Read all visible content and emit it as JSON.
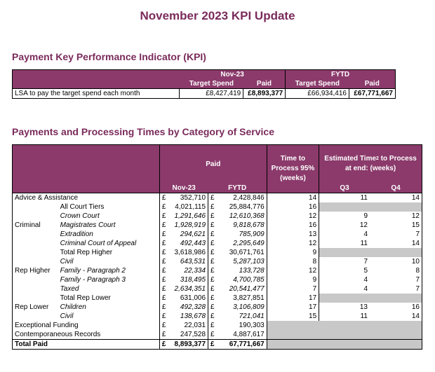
{
  "title": "November 2023 KPI Update",
  "kpi": {
    "section_title": "Payment Key Performance Indicator (KPI)",
    "period_nov": "Nov-23",
    "period_fytd": "FYTD",
    "col_target": "Target Spend",
    "col_paid": "Paid",
    "row_label": "LSA to pay the target spend each month",
    "nov_target": "£8,427,419",
    "nov_paid": "£8,893,377",
    "fytd_target": "£66,934,416",
    "fytd_paid": "£67,771,667"
  },
  "category": {
    "section_title": "Payments and Processing Times by Category of Service",
    "hdr_paid": "Paid",
    "hdr_nov": "Nov-23",
    "hdr_fytd": "FYTD",
    "hdr_time": "Time to Process 95% (weeks)",
    "hdr_est_pre": "Estimated Time",
    "hdr_est_sup": "2",
    "hdr_est_post": " to Process at end: (weeks)",
    "hdr_q3": "Q3",
    "hdr_q4": "Q4",
    "currency": "£",
    "rows": [
      {
        "group": "Advice & Assistance",
        "sub": "",
        "nov": "352,710",
        "fytd": "2,428,846",
        "time": "14",
        "q3": "11",
        "q4": "14"
      },
      {
        "group": "",
        "sub": "All Court Tiers",
        "nov": "4,021,115",
        "fytd": "25,884,776",
        "time": "16",
        "q3": "",
        "q4": ""
      },
      {
        "group": "",
        "sub": "Crown Court",
        "nov": "1,291,646",
        "fytd": "12,610,368",
        "time": "12",
        "q3": "9",
        "q4": "12"
      },
      {
        "group": "Criminal",
        "sub": "Magistrates Court",
        "nov": "1,928,919",
        "fytd": "9,818,678",
        "time": "16",
        "q3": "12",
        "q4": "15"
      },
      {
        "group": "",
        "sub": "Extradition",
        "nov": "294,621",
        "fytd": "785,909",
        "time": "13",
        "q3": "4",
        "q4": "7"
      },
      {
        "group": "",
        "sub": "Criminal Court of Appeal",
        "nov": "492,443",
        "fytd": "2,295,649",
        "time": "12",
        "q3": "11",
        "q4": "14"
      },
      {
        "group": "",
        "sub": "Total Rep Higher",
        "nov": "3,618,986",
        "fytd": "30,671,761",
        "time": "9",
        "q3": "",
        "q4": ""
      },
      {
        "group": "",
        "sub": "Civil",
        "nov": "643,531",
        "fytd": "5,287,103",
        "time": "8",
        "q3": "7",
        "q4": "10"
      },
      {
        "group": "Rep Higher",
        "sub": "Family - Paragraph 2",
        "nov": "22,334",
        "fytd": "133,728",
        "time": "12",
        "q3": "5",
        "q4": "8"
      },
      {
        "group": "",
        "sub": "Family - Paragraph 3",
        "nov": "318,495",
        "fytd": "4,700,785",
        "time": "9",
        "q3": "4",
        "q4": "7"
      },
      {
        "group": "",
        "sub": "Taxed",
        "nov": "2,634,351",
        "fytd": "20,541,477",
        "time": "7",
        "q3": "4",
        "q4": "7"
      },
      {
        "group": "",
        "sub": "Total Rep Lower",
        "nov": "631,006",
        "fytd": "3,827,851",
        "time": "17",
        "q3": "",
        "q4": ""
      },
      {
        "group": "Rep Lower",
        "sub": "Children",
        "nov": "492,328",
        "fytd": "3,106,809",
        "time": "17",
        "q3": "13",
        "q4": "16"
      },
      {
        "group": "",
        "sub": "Civil",
        "nov": "138,678",
        "fytd": "721,041",
        "time": "15",
        "q3": "11",
        "q4": "14"
      },
      {
        "group": "Exceptional Funding",
        "sub": "",
        "nov": "22,031",
        "fytd": "190,303",
        "time": "",
        "q3": "",
        "q4": ""
      },
      {
        "group": "Contemporaneous Records",
        "sub": "",
        "nov": "247,528",
        "fytd": "4,887,617",
        "time": "",
        "q3": "",
        "q4": ""
      },
      {
        "group": "Total Paid",
        "sub": "",
        "nov": "8,893,377",
        "fytd": "67,771,667",
        "time": "",
        "q3": "",
        "q4": ""
      }
    ]
  }
}
